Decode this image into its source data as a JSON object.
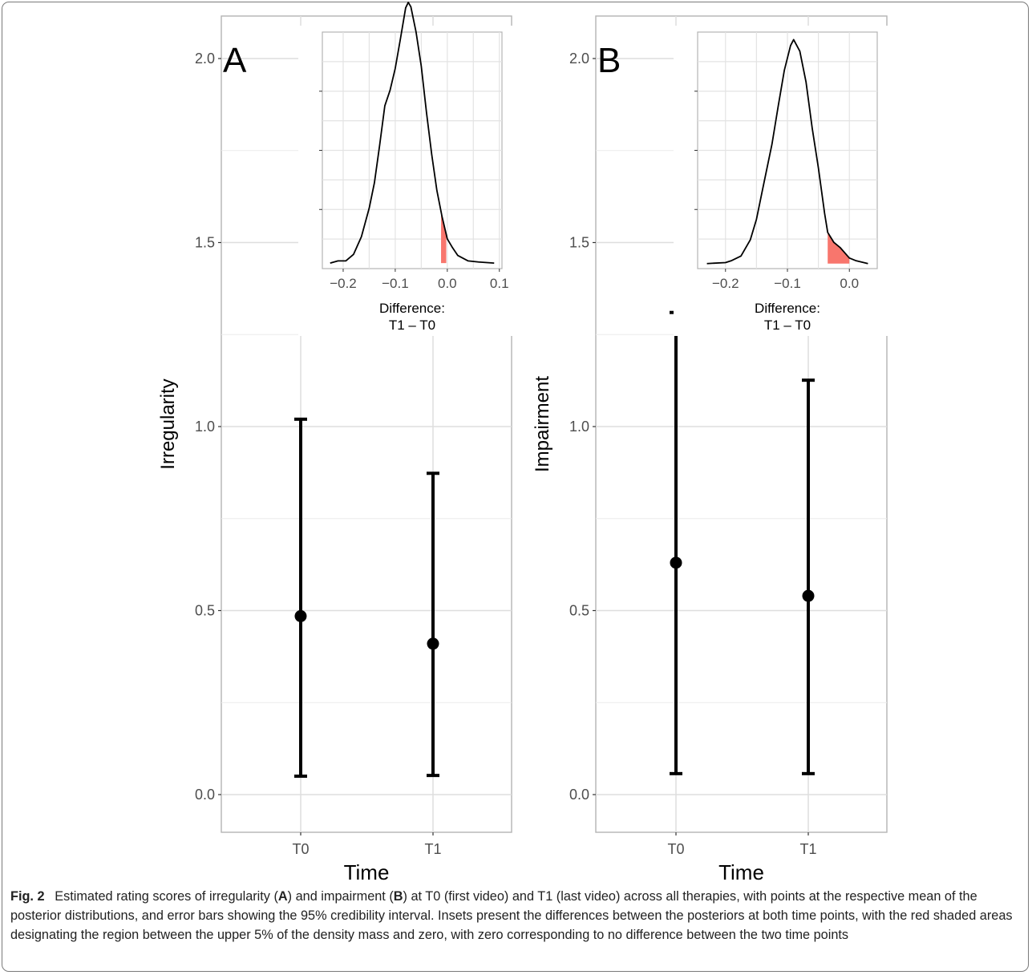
{
  "chart_data": [
    {
      "type": "errorbar",
      "panel_label": "A",
      "xlabel": "Time",
      "ylabel": "Irregularity",
      "categories": [
        "T0",
        "T1"
      ],
      "points": [
        {
          "x": "T0",
          "mean": 0.485,
          "lower": 0.05,
          "upper": 1.02
        },
        {
          "x": "T1",
          "mean": 0.41,
          "lower": 0.052,
          "upper": 0.873
        }
      ],
      "ylim": [
        -0.1,
        2.1
      ],
      "yticks": [
        "0.0",
        "0.5",
        "1.0",
        "1.5",
        "2.0"
      ],
      "yticks_values": [
        0.0,
        0.5,
        1.0,
        1.5,
        2.0
      ],
      "grid": true,
      "inset": {
        "type": "area",
        "xlabel": "Difference:\nT1 – T0",
        "xlabel_lines": [
          "Difference:",
          "T1 – T0"
        ],
        "xticks": [
          "−0.2",
          "−0.1",
          "0.0",
          "0.1"
        ],
        "xticks_values": [
          -0.2,
          -0.1,
          0.0,
          0.1
        ],
        "xlim": [
          -0.24,
          0.105
        ],
        "ylim": [
          -0.05,
          2.1
        ],
        "x": [
          -0.225,
          -0.21,
          -0.195,
          -0.18,
          -0.165,
          -0.15,
          -0.14,
          -0.13,
          -0.12,
          -0.11,
          -0.1,
          -0.09,
          -0.08,
          -0.075,
          -0.07,
          -0.06,
          -0.05,
          -0.04,
          -0.03,
          -0.02,
          -0.01,
          0.0,
          0.01,
          0.02,
          0.04,
          0.06,
          0.09
        ],
        "density": [
          0.0,
          0.02,
          0.02,
          0.08,
          0.24,
          0.5,
          0.73,
          1.07,
          1.43,
          1.57,
          1.77,
          2.04,
          2.32,
          2.37,
          2.33,
          2.1,
          1.79,
          1.37,
          0.99,
          0.66,
          0.42,
          0.22,
          0.14,
          0.07,
          0.02,
          0.01,
          0.0
        ],
        "shaded_from": -0.012,
        "shaded_to": -0.002,
        "shade_color": "#f8766d"
      }
    },
    {
      "type": "errorbar",
      "panel_label": "B",
      "xlabel": "Time",
      "ylabel": "Impairment",
      "categories": [
        "T0",
        "T1"
      ],
      "points": [
        {
          "x": "T0",
          "mean": 0.63,
          "lower": 0.057,
          "upper": 1.31
        },
        {
          "x": "T1",
          "mean": 0.54,
          "lower": 0.057,
          "upper": 1.126
        }
      ],
      "ylim": [
        -0.1,
        2.1
      ],
      "yticks": [
        "0.0",
        "0.5",
        "1.0",
        "1.5",
        "2.0"
      ],
      "yticks_values": [
        0.0,
        0.5,
        1.0,
        1.5,
        2.0
      ],
      "grid": true,
      "inset": {
        "type": "area",
        "xlabel": "Difference:\nT1 – T0",
        "xlabel_lines": [
          "Difference:",
          "T1 – T0"
        ],
        "xticks": [
          "−0.2",
          "−0.1",
          "0.0"
        ],
        "xticks_values": [
          -0.2,
          -0.1,
          0.0
        ],
        "xlim": [
          -0.245,
          0.045
        ],
        "ylim": [
          -0.1,
          4.6
        ],
        "x": [
          -0.23,
          -0.2,
          -0.19,
          -0.175,
          -0.16,
          -0.15,
          -0.14,
          -0.125,
          -0.115,
          -0.105,
          -0.095,
          -0.09,
          -0.08,
          -0.07,
          -0.06,
          -0.05,
          -0.04,
          -0.035,
          -0.025,
          -0.015,
          -0.005,
          0.0,
          0.01,
          0.02,
          0.03
        ],
        "density": [
          0.0,
          0.02,
          0.06,
          0.15,
          0.47,
          0.88,
          1.48,
          2.37,
          3.12,
          3.84,
          4.33,
          4.45,
          4.22,
          3.61,
          2.69,
          1.9,
          1.0,
          0.62,
          0.42,
          0.32,
          0.18,
          0.11,
          0.06,
          0.03,
          0.0
        ],
        "shaded_from": -0.035,
        "shaded_to": 0.0,
        "shade_color": "#f8766d"
      }
    }
  ],
  "caption": {
    "label": "Fig. 2",
    "parts": [
      {
        "t": "Estimated rating scores of irregularity ("
      },
      {
        "t": "A",
        "b": true
      },
      {
        "t": ") and impairment ("
      },
      {
        "t": "B",
        "b": true
      },
      {
        "t": ") at T0 (first video) and T1 (last video) across all therapies, with points at the respective mean of the posterior distributions, and error bars showing the 95% credibility interval. Insets present the differences between the posteriors at both time points, with the red shaded areas designating the region between the upper 5% of the density mass and zero, with zero corresponding to no difference between the two time points"
      }
    ]
  }
}
